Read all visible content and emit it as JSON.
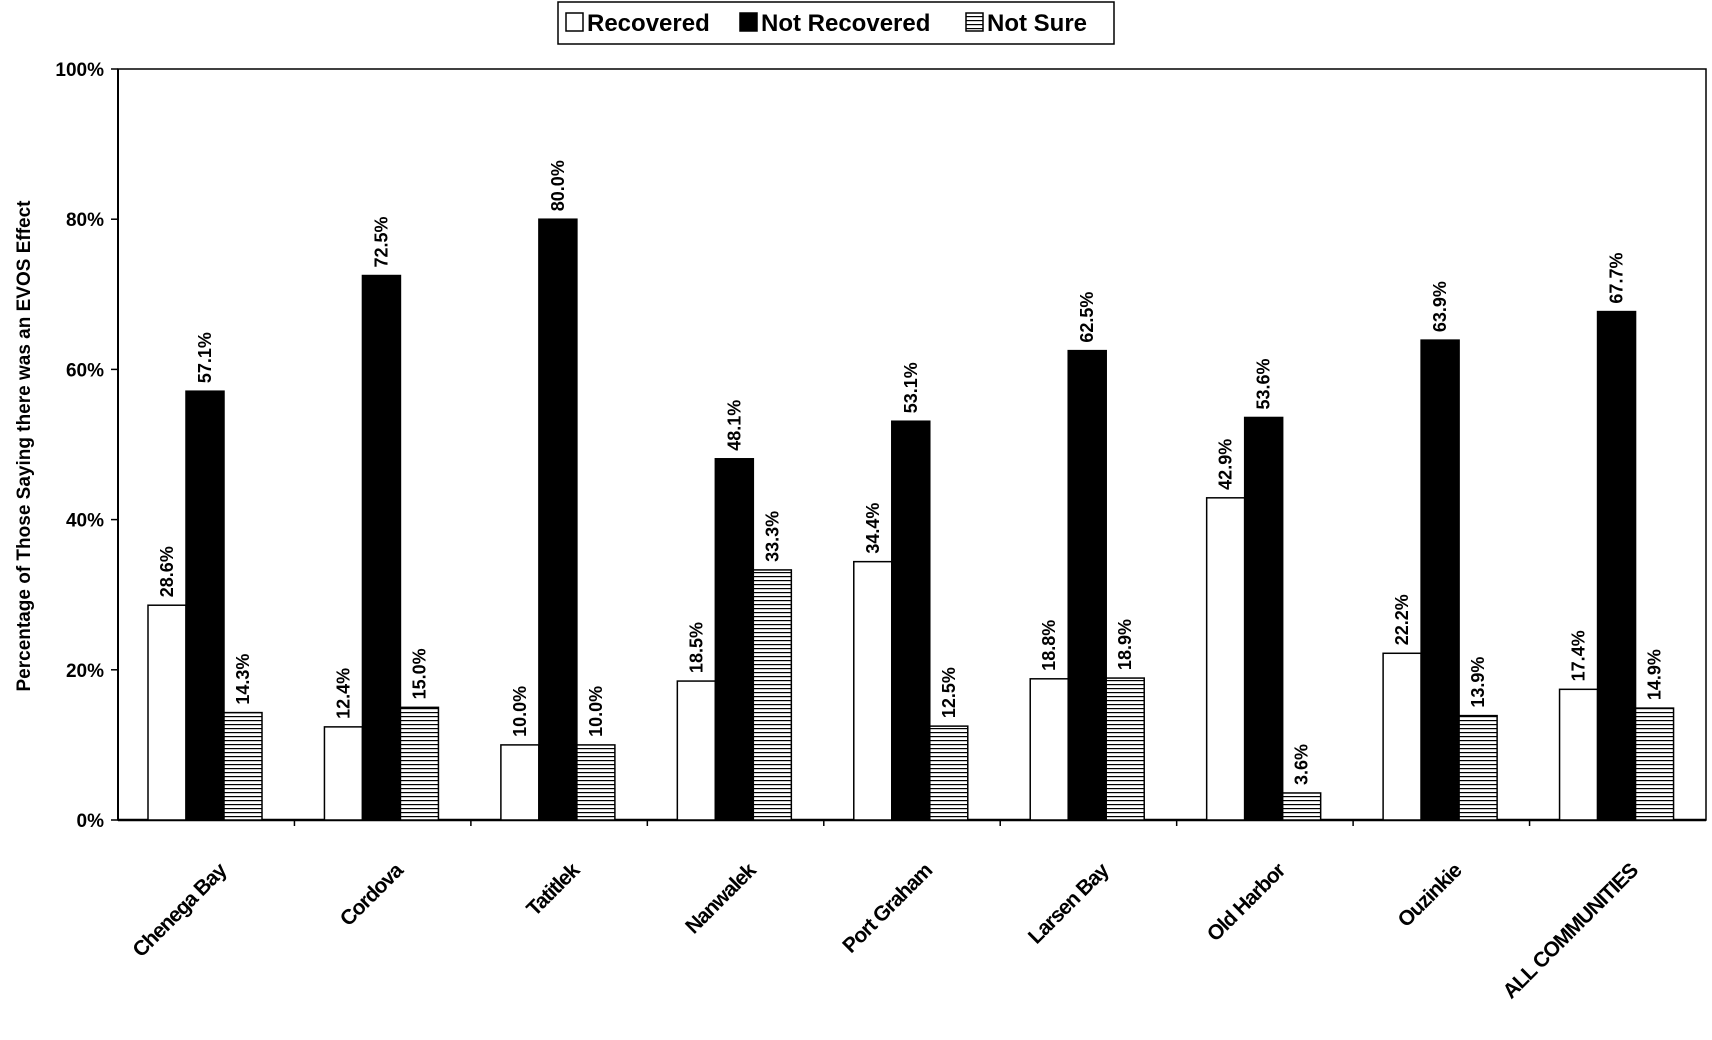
{
  "chart_data": {
    "type": "bar",
    "title": "",
    "xlabel": "",
    "ylabel": "Percentage of Those Saying there was an EVOS Effect",
    "ylim": [
      0,
      100
    ],
    "yticks": [
      "0%",
      "20%",
      "40%",
      "60%",
      "80%",
      "100%"
    ],
    "grid": false,
    "legend_position": "top-center",
    "categories": [
      "Chenega Bay",
      "Cordova",
      "Tatitlek",
      "Nanwalek",
      "Port Graham",
      "Larsen Bay",
      "Old Harbor",
      "Ouzinkie",
      "ALL COMMUNITIES"
    ],
    "series": [
      {
        "name": "Recovered",
        "color": "#ffffff",
        "pattern": "none",
        "values": [
          28.6,
          12.4,
          10.0,
          18.5,
          34.4,
          18.8,
          42.9,
          22.2,
          17.4
        ],
        "labels": [
          "28.6%",
          "12.4%",
          "10.0%",
          "18.5%",
          "34.4%",
          "18.8%",
          "42.9%",
          "22.2%",
          "17.4%"
        ]
      },
      {
        "name": "Not Recovered",
        "color": "#000000",
        "pattern": "none",
        "values": [
          57.1,
          72.5,
          80.0,
          48.1,
          53.1,
          62.5,
          53.6,
          63.9,
          67.7
        ],
        "labels": [
          "57.1%",
          "72.5%",
          "80.0%",
          "48.1%",
          "53.1%",
          "62.5%",
          "53.6%",
          "63.9%",
          "67.7%"
        ]
      },
      {
        "name": "Not Sure",
        "color": "#ffffff",
        "pattern": "horizontal-lines",
        "values": [
          14.3,
          15.0,
          10.0,
          33.3,
          12.5,
          18.9,
          3.6,
          13.9,
          14.9
        ],
        "labels": [
          "14.3%",
          "15.0%",
          "10.0%",
          "33.3%",
          "12.5%",
          "18.9%",
          "3.6%",
          "13.9%",
          "14.9%"
        ]
      }
    ]
  }
}
